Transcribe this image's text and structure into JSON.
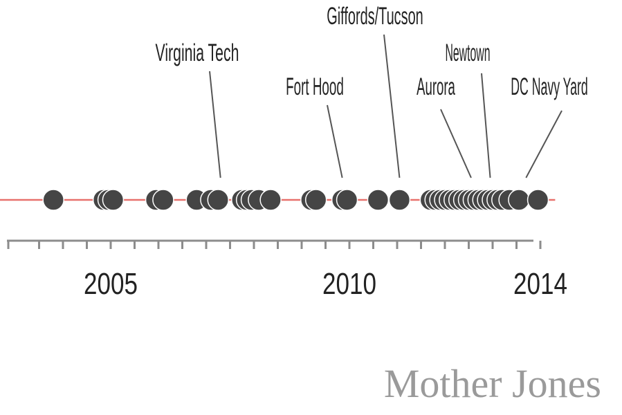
{
  "chart_data": {
    "type": "scatter",
    "title": "",
    "xlabel": "",
    "ylabel": "",
    "xlim": [
      2002.0,
      2014.6
    ],
    "tick_labels": [
      {
        "x": 2005,
        "label": "2005"
      },
      {
        "x": 2010,
        "label": "2010"
      },
      {
        "x": 2014,
        "label": "2014"
      }
    ],
    "minor_ticks": [
      2004,
      2005,
      2006,
      2007,
      2008,
      2009,
      2010,
      2011,
      2012,
      2013,
      2014
    ],
    "points": [
      2003.8,
      2004.85,
      2004.95,
      2005.05,
      2005.95,
      2006.1,
      2006.8,
      2007.1,
      2007.25,
      2007.75,
      2007.85,
      2007.95,
      2008.1,
      2008.35,
      2009.2,
      2009.3,
      2009.85,
      2009.95,
      2010.6,
      2011.05,
      2011.7,
      2011.8,
      2011.9,
      2012.0,
      2012.1,
      2012.2,
      2012.3,
      2012.4,
      2012.5,
      2012.6,
      2012.7,
      2012.8,
      2012.9,
      2013.0,
      2013.1,
      2013.2,
      2013.35,
      2013.55,
      2013.95
    ],
    "annotations": [
      {
        "label": "Virginia Tech",
        "x": 2007.3
      },
      {
        "label": "Fort Hood",
        "x": 2009.85
      },
      {
        "label": "Giffords/Tucson",
        "x": 2011.05
      },
      {
        "label": "Aurora",
        "x": 2012.55
      },
      {
        "label": "Newtown",
        "x": 2012.95
      },
      {
        "label": "DC Navy Yard",
        "x": 2013.7
      }
    ],
    "colors": {
      "point": "#454545",
      "baseline": "#e8716c",
      "axis": "#8c8c8c",
      "text": "#222222"
    }
  },
  "credit": "Mother Jones"
}
